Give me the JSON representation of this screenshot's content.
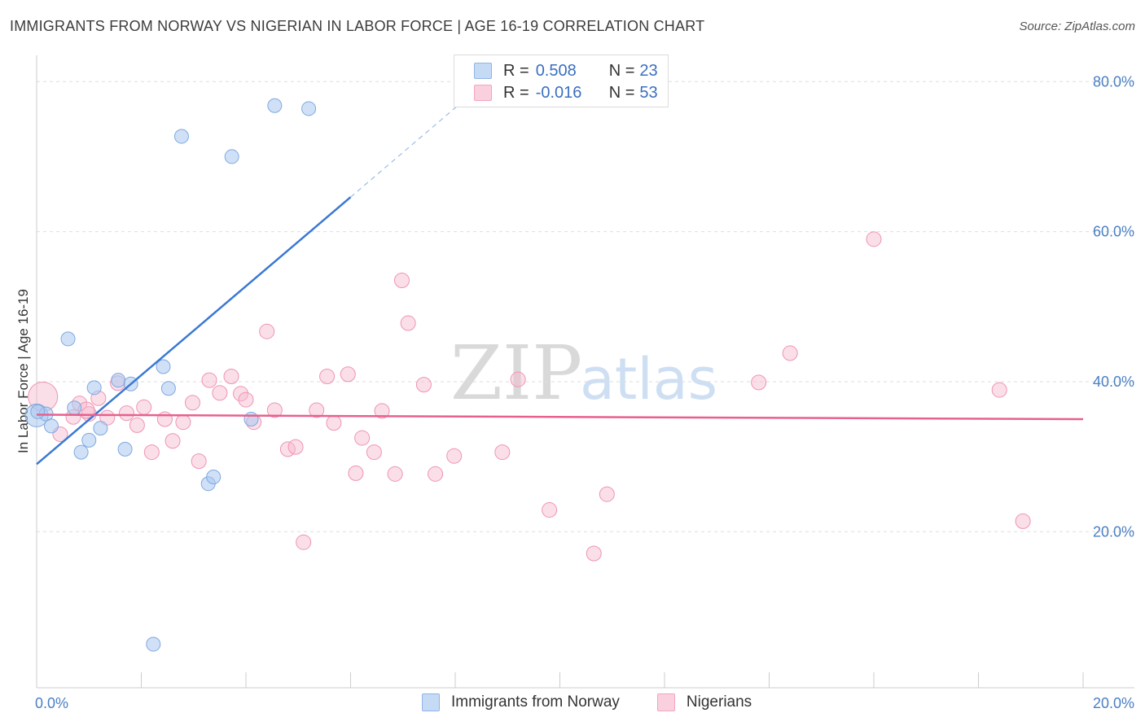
{
  "header": {
    "title": "IMMIGRANTS FROM NORWAY VS NIGERIAN IN LABOR FORCE | AGE 16-19 CORRELATION CHART",
    "source": "Source: ZipAtlas.com"
  },
  "watermark": {
    "zip": "ZIP",
    "atlas": "atlas"
  },
  "legend": {
    "rows": [
      {
        "r_label": "R = ",
        "r_value": "0.508",
        "n_label": "N = ",
        "n_value": "23",
        "color": "#a9c8f0"
      },
      {
        "r_label": "R = ",
        "r_value": "-0.016",
        "n_label": "N = ",
        "n_value": "53",
        "color": "#f6b8cc"
      }
    ]
  },
  "bottom_legend": {
    "items": [
      {
        "label": "Immigrants from Norway",
        "color": "#a9c8f0"
      },
      {
        "label": "Nigerians",
        "color": "#f6b8cc"
      }
    ]
  },
  "chart_data": {
    "type": "scatter",
    "title": "IMMIGRANTS FROM NORWAY VS NIGERIAN IN LABOR FORCE | AGE 16-19 CORRELATION CHART",
    "xlabel": "",
    "ylabel": "In Labor Force | Age 16-19",
    "xlim": [
      0,
      20
    ],
    "ylim": [
      -0.8,
      83.5
    ],
    "x_ticks": [
      0,
      2,
      4,
      6,
      8,
      10,
      12,
      14,
      16,
      18,
      20
    ],
    "x_tick_labels": {
      "0": "0.0%",
      "20": "20.0%"
    },
    "y_ticks": [
      20,
      40,
      60,
      80
    ],
    "y_tick_labels": [
      "20.0%",
      "40.0%",
      "60.0%",
      "80.0%"
    ],
    "grid": "horizontal dashed",
    "legend_position": "top-center",
    "series": [
      {
        "name": "Immigrants from Norway",
        "color": "#a9c8f0",
        "stroke": "#7fa8e0",
        "points": [
          [
            0.0,
            35.5
          ],
          [
            0.18,
            35.7
          ],
          [
            0.28,
            34.1
          ],
          [
            0.6,
            45.7
          ],
          [
            0.72,
            36.5
          ],
          [
            0.85,
            30.6
          ],
          [
            1.0,
            32.2
          ],
          [
            1.1,
            39.2
          ],
          [
            1.22,
            33.8
          ],
          [
            1.56,
            40.2
          ],
          [
            1.69,
            31.0
          ],
          [
            1.8,
            39.7
          ],
          [
            2.23,
            5.0
          ],
          [
            2.42,
            42.0
          ],
          [
            2.52,
            39.1
          ],
          [
            2.77,
            72.7
          ],
          [
            3.28,
            26.4
          ],
          [
            3.38,
            27.3
          ],
          [
            3.73,
            70.0
          ],
          [
            4.1,
            35.0
          ],
          [
            4.55,
            76.8
          ],
          [
            5.2,
            76.4
          ],
          [
            0.02,
            36.0
          ]
        ],
        "trend": {
          "x0": 0.0,
          "y0": 29.0,
          "x1": 6.0,
          "y1": 64.6,
          "dashed_to_x": 8.2,
          "dashed_to_y": 77.7,
          "color": "#3a78d4"
        }
      },
      {
        "name": "Nigerians",
        "color": "#f6b8cc",
        "stroke": "#ee94b2",
        "points": [
          [
            0.12,
            38.0
          ],
          [
            0.45,
            33.0
          ],
          [
            0.7,
            35.3
          ],
          [
            0.82,
            37.1
          ],
          [
            1.0,
            35.7
          ],
          [
            1.18,
            37.8
          ],
          [
            1.35,
            35.2
          ],
          [
            1.55,
            39.8
          ],
          [
            1.72,
            35.8
          ],
          [
            1.92,
            34.2
          ],
          [
            2.05,
            36.6
          ],
          [
            2.2,
            30.6
          ],
          [
            2.45,
            35.0
          ],
          [
            2.6,
            32.1
          ],
          [
            2.8,
            34.6
          ],
          [
            2.98,
            37.2
          ],
          [
            3.1,
            29.4
          ],
          [
            3.3,
            40.2
          ],
          [
            3.5,
            38.5
          ],
          [
            3.72,
            40.7
          ],
          [
            3.9,
            38.4
          ],
          [
            4.0,
            37.6
          ],
          [
            4.15,
            34.6
          ],
          [
            4.4,
            46.7
          ],
          [
            4.55,
            36.2
          ],
          [
            4.8,
            31.0
          ],
          [
            4.95,
            31.3
          ],
          [
            5.1,
            18.6
          ],
          [
            5.35,
            36.2
          ],
          [
            5.55,
            40.7
          ],
          [
            5.68,
            34.5
          ],
          [
            5.95,
            41.0
          ],
          [
            6.1,
            27.8
          ],
          [
            6.22,
            32.5
          ],
          [
            6.45,
            30.6
          ],
          [
            6.6,
            36.1
          ],
          [
            6.85,
            27.7
          ],
          [
            6.98,
            53.5
          ],
          [
            7.1,
            47.8
          ],
          [
            7.4,
            39.6
          ],
          [
            7.62,
            27.7
          ],
          [
            7.98,
            30.1
          ],
          [
            8.9,
            30.6
          ],
          [
            9.2,
            40.3
          ],
          [
            9.8,
            22.9
          ],
          [
            10.65,
            17.1
          ],
          [
            10.9,
            25.0
          ],
          [
            13.8,
            39.9
          ],
          [
            14.4,
            43.8
          ],
          [
            16.0,
            59.0
          ],
          [
            18.4,
            38.9
          ],
          [
            18.85,
            21.4
          ],
          [
            0.95,
            36.2
          ]
        ],
        "trend": {
          "x0": 0.0,
          "y0": 35.6,
          "x1": 20.0,
          "y1": 35.0,
          "color": "#e8608e"
        }
      }
    ]
  }
}
